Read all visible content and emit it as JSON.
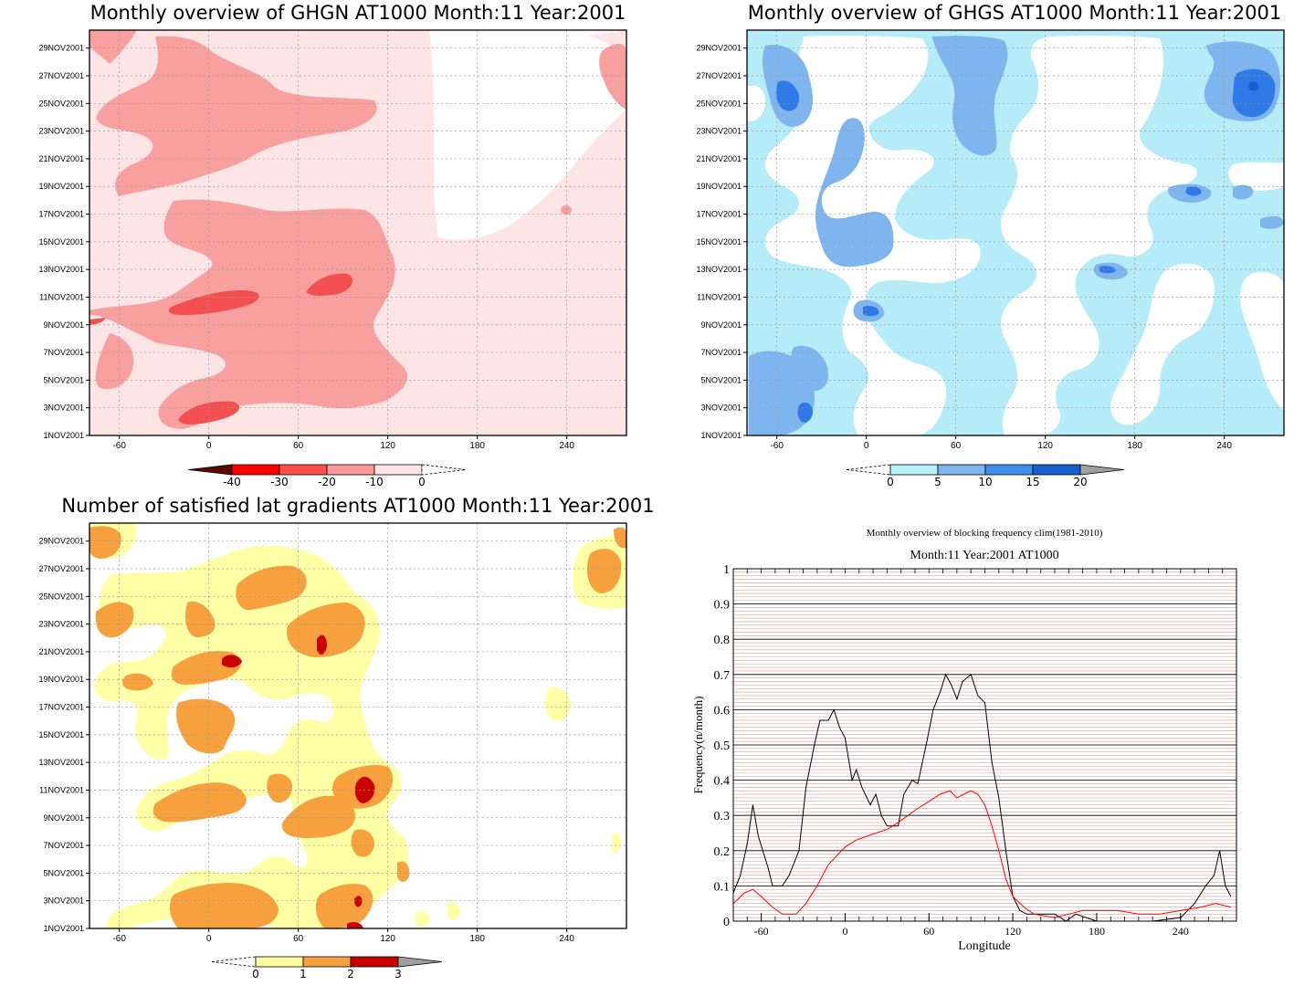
{
  "panels": {
    "ghgn": {
      "title": "Monthly overview of GHGN AT1000 Month:11 Year:2001",
      "date_ticks": [
        "1NOV2001",
        "3NOV2001",
        "5NOV2001",
        "7NOV2001",
        "9NOV2001",
        "11NOV2001",
        "13NOV2001",
        "15NOV2001",
        "17NOV2001",
        "19NOV2001",
        "21NOV2001",
        "23NOV2001",
        "25NOV2001",
        "27NOV2001",
        "29NOV2001"
      ],
      "lon_ticks": [
        "-60",
        "0",
        "60",
        "120",
        "180",
        "240"
      ],
      "colorbar": {
        "labels": [
          "-40",
          "-30",
          "-20",
          "-10",
          "0"
        ],
        "colors": [
          "#5a0a00",
          "#ff0000",
          "#ff5050",
          "#ff9999",
          "#ffe4e4"
        ]
      },
      "fill_colors": {
        "level1": "#fde5e5",
        "level2": "#f8a0a0",
        "level3": "#f25050"
      }
    },
    "ghgs": {
      "title": "Monthly overview of GHGS AT1000 Month:11 Year:2001",
      "date_ticks": [
        "1NOV2001",
        "3NOV2001",
        "5NOV2001",
        "7NOV2001",
        "9NOV2001",
        "11NOV2001",
        "13NOV2001",
        "15NOV2001",
        "17NOV2001",
        "19NOV2001",
        "21NOV2001",
        "23NOV2001",
        "25NOV2001",
        "27NOV2001",
        "29NOV2001"
      ],
      "lon_ticks": [
        "-60",
        "0",
        "60",
        "120",
        "180",
        "240"
      ],
      "colorbar": {
        "labels": [
          "0",
          "5",
          "10",
          "15",
          "20"
        ],
        "colors": [
          "#b8eef8",
          "#7fb6f0",
          "#3d8fea",
          "#1a5fd0",
          "#a0a0a0"
        ]
      },
      "fill_colors": {
        "level1": "#b5ecf7",
        "level2": "#7eb5ef",
        "level3": "#2f7ae6"
      }
    },
    "lat_gradients": {
      "title": "Number of satisfied lat gradients AT1000 Month:11 Year:2001",
      "date_ticks": [
        "1NOV2001",
        "3NOV2001",
        "5NOV2001",
        "7NOV2001",
        "9NOV2001",
        "11NOV2001",
        "13NOV2001",
        "15NOV2001",
        "17NOV2001",
        "19NOV2001",
        "21NOV2001",
        "23NOV2001",
        "25NOV2001",
        "27NOV2001",
        "29NOV2001"
      ],
      "lon_ticks": [
        "-60",
        "0",
        "60",
        "120",
        "180",
        "240"
      ],
      "colorbar": {
        "labels": [
          "0",
          "1",
          "2",
          "3"
        ],
        "colors": [
          "#ffffa0",
          "#f7a040",
          "#c80000",
          "#a0a0a0"
        ]
      },
      "fill_colors": {
        "level1": "#ffffa6",
        "level2": "#f7a13e",
        "level3": "#c80000"
      }
    }
  },
  "chart_data": {
    "type": "line",
    "title": "Monthly overview of blocking frequency clim(1981-2010)",
    "subtitle": "Month:11 Year:2001  AT1000",
    "xlabel": "Longitude",
    "ylabel": "Frequency(n/month)",
    "xlim": [
      -80,
      280
    ],
    "ylim": [
      0,
      1
    ],
    "x_ticks": [
      "-60",
      "0",
      "60",
      "120",
      "180",
      "240"
    ],
    "y_ticks": [
      "0",
      "0.1",
      "0.2",
      "0.3",
      "0.4",
      "0.5",
      "0.6",
      "0.7",
      "0.8",
      "0.9",
      "1"
    ],
    "series": [
      {
        "color": "#000000",
        "points": [
          [
            -80,
            0.08
          ],
          [
            -75,
            0.13
          ],
          [
            -70,
            0.22
          ],
          [
            -66,
            0.33
          ],
          [
            -62,
            0.24
          ],
          [
            -55,
            0.15
          ],
          [
            -52,
            0.1
          ],
          [
            -45,
            0.1
          ],
          [
            -40,
            0.13
          ],
          [
            -33,
            0.2
          ],
          [
            -28,
            0.38
          ],
          [
            -22,
            0.5
          ],
          [
            -18,
            0.57
          ],
          [
            -12,
            0.57
          ],
          [
            -8,
            0.6
          ],
          [
            -4,
            0.55
          ],
          [
            0,
            0.52
          ],
          [
            5,
            0.4
          ],
          [
            8,
            0.43
          ],
          [
            12,
            0.38
          ],
          [
            18,
            0.33
          ],
          [
            22,
            0.36
          ],
          [
            26,
            0.3
          ],
          [
            30,
            0.27
          ],
          [
            38,
            0.27
          ],
          [
            42,
            0.36
          ],
          [
            48,
            0.4
          ],
          [
            52,
            0.39
          ],
          [
            58,
            0.5
          ],
          [
            63,
            0.6
          ],
          [
            68,
            0.65
          ],
          [
            72,
            0.7
          ],
          [
            76,
            0.67
          ],
          [
            80,
            0.63
          ],
          [
            84,
            0.68
          ],
          [
            90,
            0.7
          ],
          [
            95,
            0.64
          ],
          [
            100,
            0.62
          ],
          [
            105,
            0.45
          ],
          [
            110,
            0.35
          ],
          [
            115,
            0.2
          ],
          [
            120,
            0.07
          ],
          [
            125,
            0.03
          ],
          [
            130,
            0.02
          ],
          [
            140,
            0.02
          ],
          [
            150,
            0.02
          ],
          [
            158,
            0.0
          ],
          [
            165,
            0.02
          ],
          [
            180,
            0.0
          ],
          [
            200,
            0.0
          ],
          [
            220,
            0.0
          ],
          [
            240,
            0.01
          ],
          [
            250,
            0.05
          ],
          [
            258,
            0.1
          ],
          [
            264,
            0.13
          ],
          [
            268,
            0.2
          ],
          [
            272,
            0.1
          ],
          [
            276,
            0.07
          ]
        ]
      },
      {
        "color": "#ff0000",
        "points": [
          [
            -80,
            0.05
          ],
          [
            -72,
            0.08
          ],
          [
            -66,
            0.09
          ],
          [
            -60,
            0.07
          ],
          [
            -52,
            0.04
          ],
          [
            -45,
            0.02
          ],
          [
            -35,
            0.02
          ],
          [
            -28,
            0.05
          ],
          [
            -20,
            0.1
          ],
          [
            -12,
            0.16
          ],
          [
            -5,
            0.19
          ],
          [
            0,
            0.21
          ],
          [
            8,
            0.23
          ],
          [
            15,
            0.24
          ],
          [
            22,
            0.25
          ],
          [
            30,
            0.26
          ],
          [
            38,
            0.28
          ],
          [
            45,
            0.3
          ],
          [
            52,
            0.32
          ],
          [
            60,
            0.34
          ],
          [
            68,
            0.36
          ],
          [
            75,
            0.37
          ],
          [
            80,
            0.35
          ],
          [
            85,
            0.36
          ],
          [
            90,
            0.37
          ],
          [
            95,
            0.36
          ],
          [
            100,
            0.33
          ],
          [
            105,
            0.27
          ],
          [
            110,
            0.2
          ],
          [
            115,
            0.12
          ],
          [
            120,
            0.07
          ],
          [
            128,
            0.04
          ],
          [
            135,
            0.02
          ],
          [
            150,
            0.01
          ],
          [
            160,
            0.02
          ],
          [
            170,
            0.03
          ],
          [
            180,
            0.03
          ],
          [
            195,
            0.03
          ],
          [
            210,
            0.02
          ],
          [
            225,
            0.02
          ],
          [
            240,
            0.03
          ],
          [
            255,
            0.04
          ],
          [
            265,
            0.05
          ],
          [
            276,
            0.04
          ]
        ]
      }
    ]
  }
}
